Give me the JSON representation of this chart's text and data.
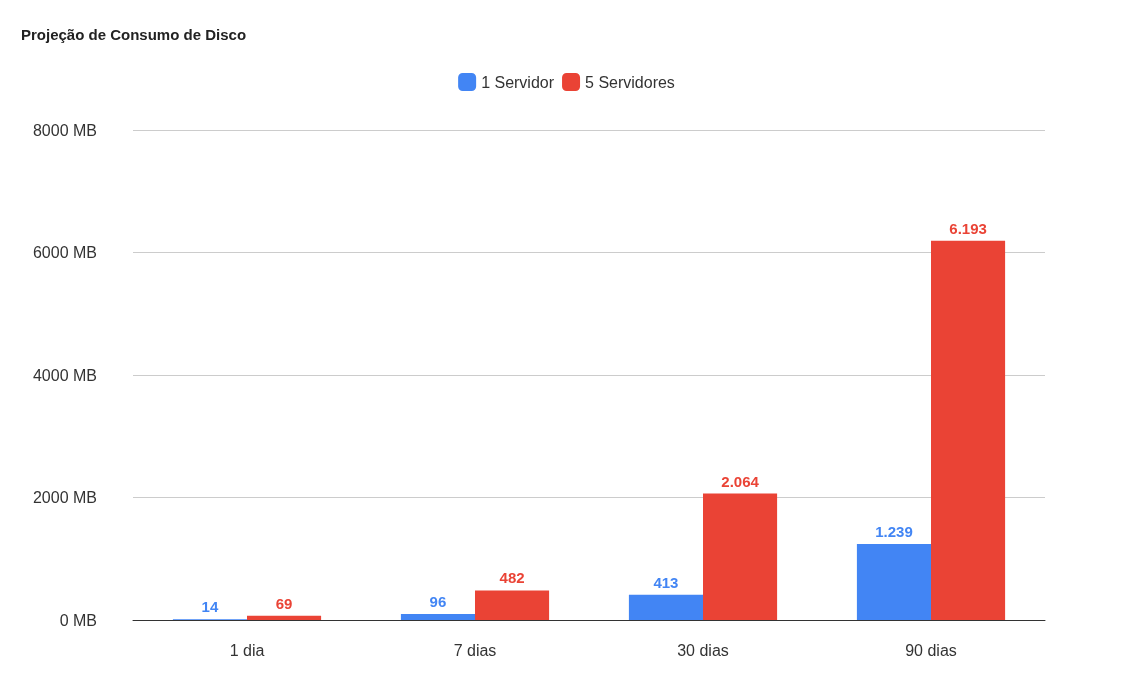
{
  "chart_data": {
    "type": "bar",
    "title": "Projeção de Consumo de Disco",
    "categories": [
      "1 dia",
      "7 dias",
      "30 dias",
      "90 dias"
    ],
    "series": [
      {
        "name": "1 Servidor",
        "color": "#4285f4",
        "values": [
          14,
          96,
          413,
          1239
        ],
        "value_labels": [
          "14",
          "96",
          "413",
          "1.239"
        ]
      },
      {
        "name": "5 Servidores",
        "color": "#ea4335",
        "values": [
          69,
          482,
          2064,
          6193
        ],
        "value_labels": [
          "69",
          "482",
          "2.064",
          "6.193"
        ]
      }
    ],
    "ylim": [
      0,
      8000
    ],
    "yticks": [
      {
        "value": 0,
        "label": "0 MB"
      },
      {
        "value": 2000,
        "label": "2000 MB"
      },
      {
        "value": 4000,
        "label": "4000 MB"
      },
      {
        "value": 6000,
        "label": "6000 MB"
      },
      {
        "value": 8000,
        "label": "8000 MB"
      }
    ],
    "grid": "y",
    "legend": "top"
  }
}
